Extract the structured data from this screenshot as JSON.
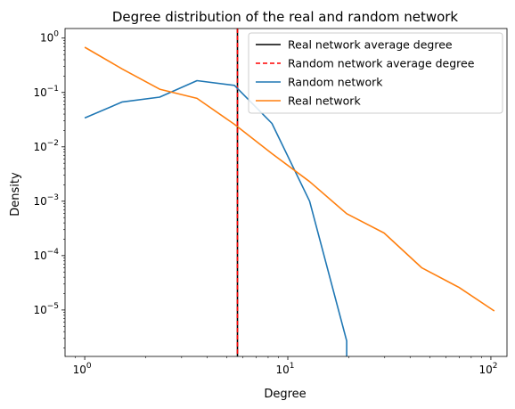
{
  "chart_data": {
    "type": "line",
    "title": "Degree distribution of the real and random network",
    "xlabel": "Degree",
    "ylabel": "Density",
    "xscale": "log",
    "yscale": "log",
    "xlim": [
      0.8,
      120
    ],
    "ylim": [
      1.4e-06,
      1.5
    ],
    "x_ticks": [
      {
        "value": 1,
        "base": "10",
        "exp": "0"
      },
      {
        "value": 10,
        "base": "10",
        "exp": "1"
      },
      {
        "value": 100,
        "base": "10",
        "exp": "2"
      }
    ],
    "y_ticks": [
      {
        "value": 1e-05,
        "base": "10",
        "exp": "−5"
      },
      {
        "value": 0.0001,
        "base": "10",
        "exp": "−4"
      },
      {
        "value": 0.001,
        "base": "10",
        "exp": "−3"
      },
      {
        "value": 0.01,
        "base": "10",
        "exp": "−2"
      },
      {
        "value": 0.1,
        "base": "10",
        "exp": "−1"
      },
      {
        "value": 1,
        "base": "10",
        "exp": "0"
      }
    ],
    "grid": false,
    "legend_position": "top-right",
    "vlines": [
      {
        "name": "Real network average degree",
        "x": 5.65,
        "color": "#000000",
        "style": "solid"
      },
      {
        "name": "Random network average degree",
        "x": 5.65,
        "color": "#ff0000",
        "style": "dashed"
      }
    ],
    "series": [
      {
        "name": "Random network",
        "color": "#1f77b4",
        "x": [
          1.0,
          1.53,
          2.34,
          3.57,
          5.46,
          8.35,
          12.8,
          19.5,
          19.5
        ],
        "y": [
          0.034,
          0.067,
          0.082,
          0.165,
          0.135,
          0.027,
          0.001,
          2.7e-06,
          1.4e-06
        ]
      },
      {
        "name": "Real network",
        "color": "#ff7f0e",
        "x": [
          1.0,
          1.53,
          2.34,
          3.57,
          5.46,
          8.35,
          12.8,
          19.5,
          29.8,
          45.6,
          69.7,
          104.0
        ],
        "y": [
          0.68,
          0.27,
          0.115,
          0.078,
          0.026,
          0.0075,
          0.0023,
          0.00059,
          0.00026,
          6e-05,
          2.6e-05,
          9.6e-06
        ]
      }
    ]
  }
}
